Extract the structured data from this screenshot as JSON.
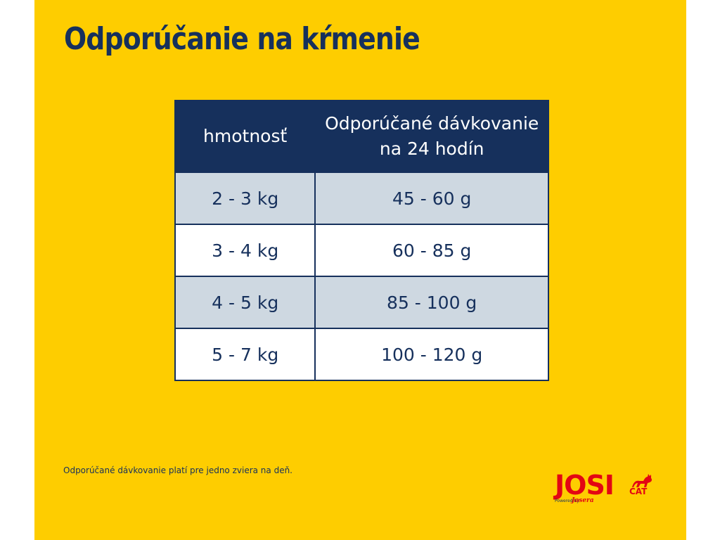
{
  "title": "Odporúčanie na kŕmenie",
  "table": {
    "headers": {
      "weight": "hmotnosť",
      "dose_line1": "Odporúčané dávkovanie",
      "dose_line2": "na 24 hodín"
    },
    "rows": [
      {
        "weight": "2 - 3 kg",
        "dose": "45 - 60 g"
      },
      {
        "weight": "3 - 4 kg",
        "dose": "60 - 85 g"
      },
      {
        "weight": "4 - 5 kg",
        "dose": "85 - 100 g"
      },
      {
        "weight": "5 - 7 kg",
        "dose": "100 - 120 g"
      }
    ]
  },
  "footnote": "Odporúčané dávkovanie platí pre jedno zviera na deň.",
  "logo": {
    "word": "JOSI",
    "sub": "CAT",
    "powered": "Powered by",
    "brand": "Josera"
  },
  "colors": {
    "background": "#fecd00",
    "navy": "#16305c",
    "row_shade": "#ced8e1",
    "logo_red": "#e30613"
  }
}
